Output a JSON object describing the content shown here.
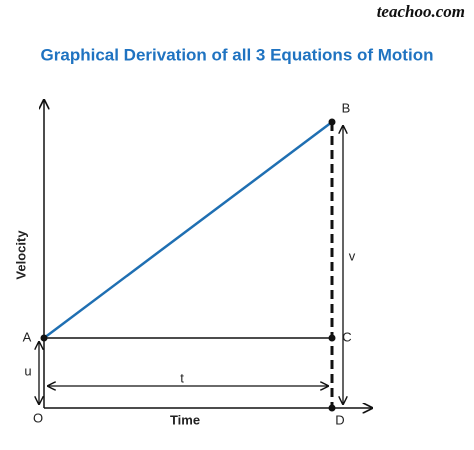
{
  "brand": "teachoo.com",
  "title": "Graphical Derivation of all 3 Equations of Motion",
  "axes": {
    "y_label": "Velocity",
    "x_label": "Time"
  },
  "points": {
    "origin": "O",
    "a": "A",
    "b": "B",
    "c": "C",
    "d": "D"
  },
  "measures": {
    "u": "u",
    "t": "t",
    "v": "v"
  }
}
